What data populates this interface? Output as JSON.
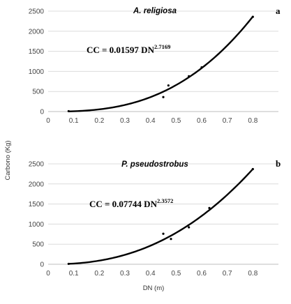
{
  "figure": {
    "ylabel": "Carbono (Kg)",
    "xlabel": "DN (m)"
  },
  "chart_data": [
    {
      "type": "scatter",
      "panel_letter": "a",
      "title": "A. religiosa",
      "equation": {
        "prefix": "CC = 0.01597 DN",
        "exponent": "2.7169"
      },
      "model": {
        "coef": 0.01597,
        "exp": 2.7169,
        "x_range": [
          0.08,
          0.8
        ]
      },
      "xlim": [
        0,
        0.9
      ],
      "ylim": [
        0,
        2500
      ],
      "x_ticks": [
        "0",
        "0.1",
        "0.2",
        "0.3",
        "0.4",
        "0.5",
        "0.6",
        "0.7",
        "0.8"
      ],
      "y_ticks": [
        "0",
        "500",
        "1000",
        "1500",
        "2000",
        "2500"
      ],
      "points": [
        [
          0.08,
          10
        ],
        [
          0.45,
          360
        ],
        [
          0.47,
          650
        ],
        [
          0.55,
          880
        ],
        [
          0.6,
          1100
        ],
        [
          0.8,
          2360
        ]
      ],
      "grid": "horizontal"
    },
    {
      "type": "scatter",
      "panel_letter": "b",
      "title": "P. pseudostrobus",
      "equation": {
        "prefix": "CC = 0.07744 DN",
        "exponent": "2.3572"
      },
      "model": {
        "coef": 0.07744,
        "exp": 2.3572,
        "x_range": [
          0.08,
          0.8
        ]
      },
      "xlim": [
        0,
        0.9
      ],
      "ylim": [
        0,
        2500
      ],
      "x_ticks": [
        "0",
        "0.1",
        "0.2",
        "0.3",
        "0.4",
        "0.5",
        "0.6",
        "0.7",
        "0.8"
      ],
      "y_ticks": [
        "0",
        "500",
        "1000",
        "1500",
        "2000",
        "2500"
      ],
      "points": [
        [
          0.08,
          10
        ],
        [
          0.45,
          760
        ],
        [
          0.48,
          630
        ],
        [
          0.55,
          920
        ],
        [
          0.63,
          1400
        ],
        [
          0.8,
          2370
        ]
      ],
      "grid": "horizontal"
    }
  ]
}
